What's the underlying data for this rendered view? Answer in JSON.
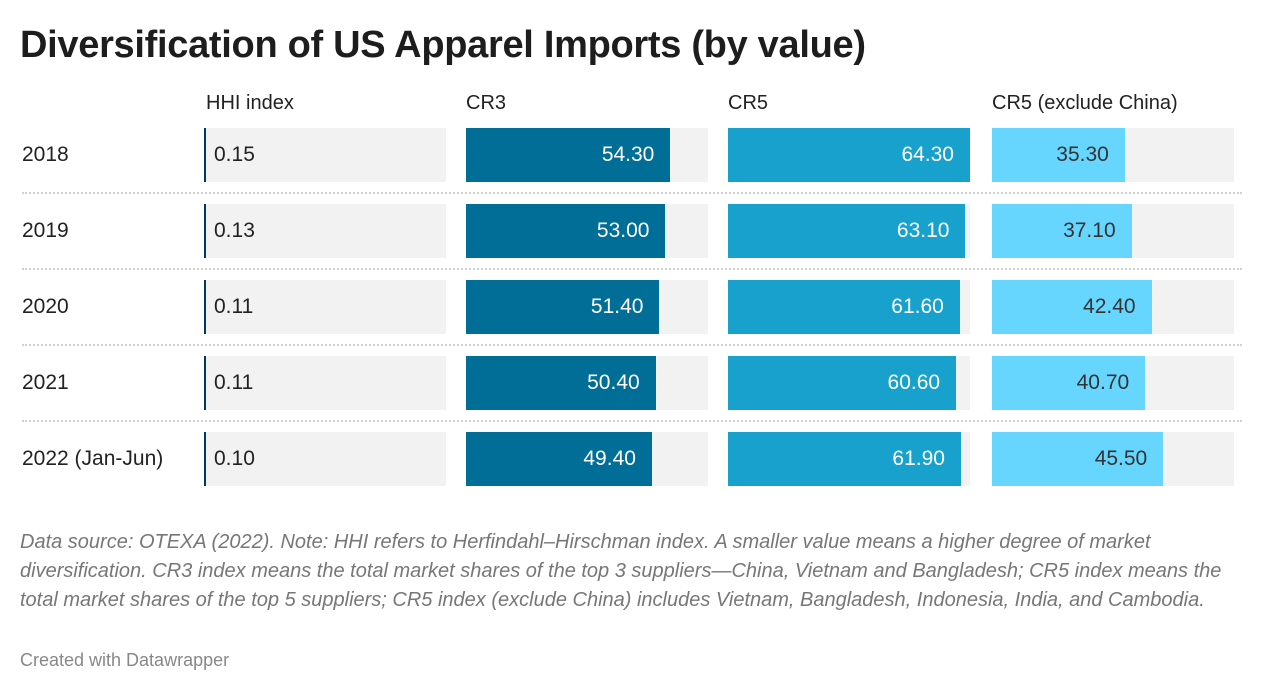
{
  "title": "Diversification of US Apparel Imports (by value)",
  "chart_data": {
    "type": "table",
    "columns": [
      "HHI index",
      "CR3",
      "CR5",
      "CR5 (exclude China)"
    ],
    "colors": [
      "#00375a",
      "#006e96",
      "#18a1cd",
      "#66d6ff"
    ],
    "bar_scale_max": 64.3,
    "rows": [
      {
        "label": "2018",
        "values": [
          "0.15",
          "54.30",
          "64.30",
          "35.30"
        ]
      },
      {
        "label": "2019",
        "values": [
          "0.13",
          "53.00",
          "63.10",
          "37.10"
        ]
      },
      {
        "label": "2020",
        "values": [
          "0.11",
          "51.40",
          "61.60",
          "42.40"
        ]
      },
      {
        "label": "2021",
        "values": [
          "0.11",
          "50.40",
          "60.60",
          "40.70"
        ]
      },
      {
        "label": "2022 (Jan-Jun)",
        "values": [
          "0.10",
          "49.40",
          "61.90",
          "45.50"
        ]
      }
    ]
  },
  "notes": "Data source: OTEXA (2022). Note: HHI refers to Herfindahl–Hirschman index. A smaller value means a higher degree of market diversification. CR3 index means the total market shares of the top 3 suppliers—China, Vietnam and Bangladesh; CR5 index means the total market shares of the top 5 suppliers; CR5 index (exclude China) includes Vietnam, Bangladesh, Indonesia, India, and Cambodia.",
  "credit": "Created with Datawrapper"
}
